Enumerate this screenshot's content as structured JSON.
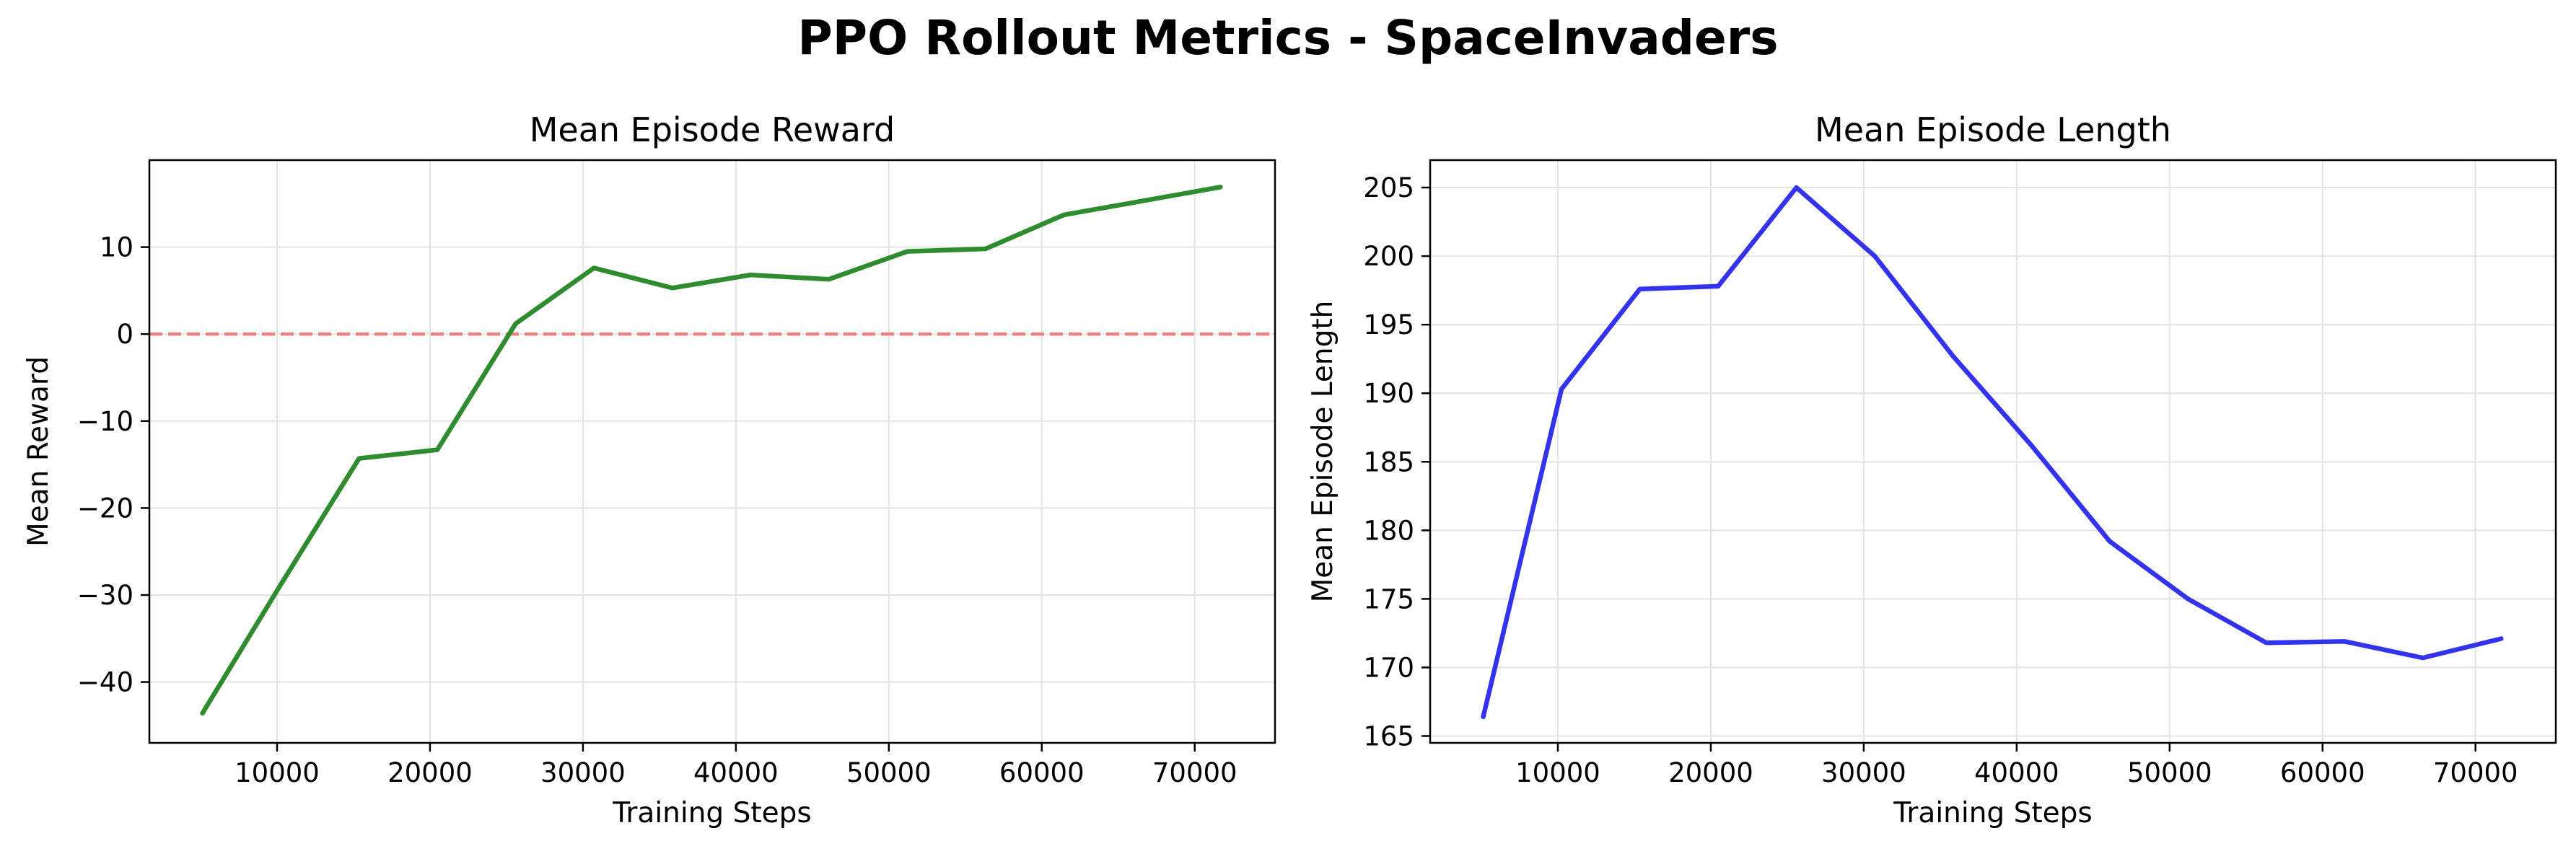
{
  "suptitle": "PPO Rollout Metrics - SpaceInvaders",
  "chart_data": [
    {
      "type": "line",
      "title": "Mean Episode Reward",
      "xlabel": "Training Steps",
      "ylabel": "Mean Reward",
      "xlim": [
        1650,
        75250
      ],
      "ylim": [
        -47,
        20
      ],
      "xticks": [
        10000,
        20000,
        30000,
        40000,
        50000,
        60000,
        70000
      ],
      "yticks": [
        -40,
        -30,
        -20,
        -10,
        0,
        10
      ],
      "ytick_labels": [
        "−40",
        "−30",
        "−20",
        "−10",
        "0",
        "10"
      ],
      "grid": true,
      "series": [
        {
          "color": "#2e8b2e",
          "x": [
            5120,
            10240,
            15360,
            20480,
            25600,
            30720,
            35840,
            40960,
            46080,
            51200,
            56320,
            61440,
            71680
          ],
          "y": [
            -43.6,
            -28.8,
            -14.3,
            -13.3,
            1.2,
            7.6,
            5.3,
            6.8,
            6.3,
            9.5,
            9.8,
            13.7,
            16.9
          ]
        }
      ],
      "hline": {
        "y": 0,
        "color": "#f08080",
        "style": "dashed"
      }
    },
    {
      "type": "line",
      "title": "Mean Episode Length",
      "xlabel": "Training Steps",
      "ylabel": "Mean Episode Length",
      "xlim": [
        1650,
        75250
      ],
      "ylim": [
        164.5,
        207
      ],
      "xticks": [
        10000,
        20000,
        30000,
        40000,
        50000,
        60000,
        70000
      ],
      "yticks": [
        165,
        170,
        175,
        180,
        185,
        190,
        195,
        200,
        205
      ],
      "grid": true,
      "series": [
        {
          "color": "#3333ee",
          "x": [
            5120,
            10240,
            15360,
            20480,
            25600,
            30720,
            35840,
            40960,
            46080,
            51200,
            56320,
            61440,
            66560,
            71680
          ],
          "y": [
            166.4,
            190.3,
            197.6,
            197.8,
            205.0,
            200.0,
            192.7,
            186.2,
            179.2,
            175.0,
            171.8,
            171.9,
            170.7,
            172.1
          ]
        }
      ]
    }
  ]
}
